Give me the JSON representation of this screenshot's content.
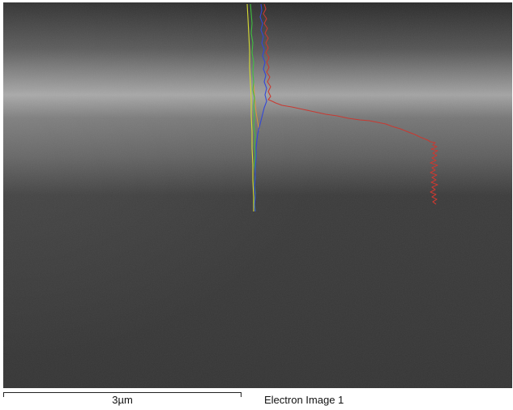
{
  "image": {
    "scale_bar_label": "3µm",
    "image_label": "Electron Image 1"
  },
  "linescan": {
    "colors": {
      "red": "#c83a32",
      "blue": "#3448d8",
      "green": "#3fbf3f",
      "yellow": "#d7dc33",
      "orange": "#d79a35"
    }
  }
}
